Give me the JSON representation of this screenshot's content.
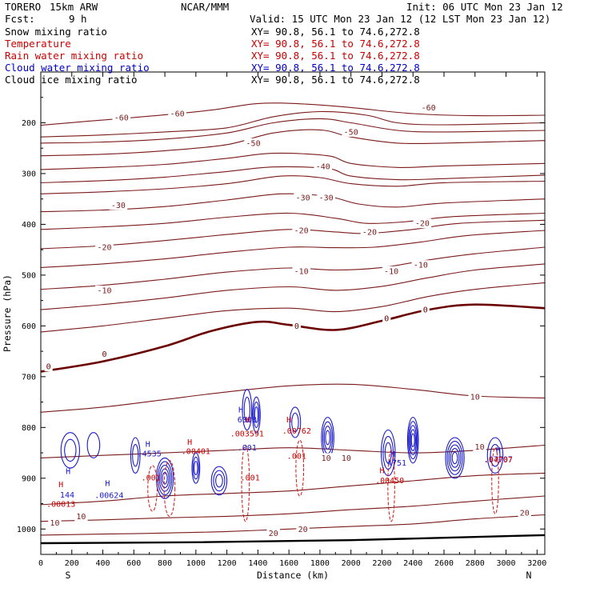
{
  "header": {
    "model": "TORERO",
    "resolution": "15km ARW",
    "org": "NCAR/MMM",
    "init": "Init: 06 UTC Mon 23 Jan 12",
    "fcst_label": "Fcst:",
    "fcst_value": "9 h",
    "valid": "Valid: 15 UTC Mon 23 Jan 12 (12 LST Mon 23 Jan 12)"
  },
  "fields": [
    {
      "name": "Snow mixing ratio",
      "xy": "XY=  90.8, 56.1 to  74.6,272.8",
      "color": "#000000",
      "xy_color": "#000000"
    },
    {
      "name": "Temperature",
      "xy": "XY=  90.8, 56.1 to  74.6,272.8",
      "color": "#cc0000",
      "xy_color": "#cc0000"
    },
    {
      "name": "Rain water mixing ratio",
      "xy": "XY=  90.8, 56.1 to  74.6,272.8",
      "color": "#cc0000",
      "xy_color": "#cc0000"
    },
    {
      "name": "Cloud water mixing ratio",
      "xy": "XY=  90.8, 56.1 to  74.6,272.8",
      "color": "#0000cc",
      "xy_color": "#0000cc"
    },
    {
      "name": "Cloud ice mixing ratio",
      "xy": "XY=  90.8, 56.1 to  74.6,272.8",
      "color": "#000000",
      "xy_color": "#000000"
    }
  ],
  "colors": {
    "temperature": "#7a1a1a",
    "freezing": "#6b0000",
    "rain": "#dd1111",
    "cloud_water": "#1a1acc",
    "ground": "#000000"
  },
  "chart_data": {
    "type": "line",
    "xlabel": "Distance (km)",
    "ylabel": "Pressure (hPa)",
    "xlim": [
      0,
      3250
    ],
    "ylim": [
      1050,
      100
    ],
    "x_ticks": [
      0,
      200,
      400,
      600,
      800,
      1000,
      1200,
      1400,
      1600,
      1800,
      2000,
      2200,
      2400,
      2600,
      2800,
      3000,
      3200
    ],
    "y_ticks": [
      200,
      300,
      400,
      500,
      600,
      700,
      800,
      900,
      1000
    ],
    "endpoints": {
      "left": "S",
      "right": "N"
    },
    "ground_pressure": [
      [
        0,
        1028
      ],
      [
        1000,
        1026
      ],
      [
        2000,
        1022
      ],
      [
        3250,
        1012
      ]
    ],
    "isotherms": [
      {
        "x": [
          0,
          300,
          700,
          1100,
          1400,
          1700,
          2000,
          2400,
          2800,
          3250
        ],
        "p": [
          205,
          197,
          187,
          175,
          162,
          163,
          170,
          182,
          186,
          185
        ]
      },
      {
        "x": [
          0,
          400,
          800,
          1200,
          1500,
          1800,
          2100,
          2300,
          2600,
          3250
        ],
        "p": [
          228,
          224,
          218,
          210,
          188,
          178,
          185,
          200,
          204,
          200
        ]
      },
      {
        "x": [
          0,
          400,
          800,
          1200,
          1500,
          1800,
          2000,
          2300,
          2600,
          3250
        ],
        "p": [
          240,
          238,
          232,
          220,
          200,
          192,
          200,
          215,
          218,
          215
        ]
      },
      {
        "x": [
          0,
          400,
          800,
          1200,
          1500,
          1800,
          2000,
          2300,
          2600,
          3250
        ],
        "p": [
          265,
          262,
          255,
          243,
          220,
          214,
          228,
          240,
          240,
          235
        ]
      },
      {
        "x": [
          0,
          400,
          800,
          1200,
          1500,
          1850,
          2000,
          2300,
          2600,
          3250
        ],
        "p": [
          292,
          288,
          282,
          270,
          260,
          265,
          280,
          288,
          285,
          280
        ]
      },
      {
        "x": [
          0,
          400,
          800,
          1200,
          1500,
          1850,
          2000,
          2300,
          2600,
          3250
        ],
        "p": [
          318,
          314,
          307,
          296,
          287,
          290,
          305,
          312,
          310,
          303
        ]
      },
      {
        "x": [
          0,
          400,
          800,
          1200,
          1550,
          1800,
          2000,
          2300,
          2600,
          3250
        ],
        "p": [
          340,
          336,
          330,
          320,
          305,
          308,
          320,
          325,
          318,
          315
        ]
      },
      {
        "x": [
          0,
          400,
          800,
          1200,
          1550,
          1850,
          2050,
          2300,
          2600,
          3250
        ],
        "p": [
          375,
          372,
          365,
          352,
          340,
          345,
          360,
          366,
          358,
          350
        ]
      },
      {
        "x": [
          0,
          400,
          800,
          1200,
          1600,
          1900,
          2100,
          2350,
          2650,
          3250
        ],
        "p": [
          410,
          405,
          398,
          386,
          378,
          388,
          398,
          395,
          385,
          378
        ]
      },
      {
        "x": [
          0,
          400,
          800,
          1200,
          1600,
          1900,
          2100,
          2400,
          2700,
          3250
        ],
        "p": [
          448,
          442,
          432,
          420,
          410,
          415,
          418,
          410,
          398,
          392
        ]
      },
      {
        "x": [
          0,
          400,
          800,
          1200,
          1600,
          1900,
          2150,
          2450,
          2750,
          3250
        ],
        "p": [
          485,
          478,
          468,
          455,
          445,
          446,
          445,
          435,
          422,
          412
        ]
      },
      {
        "x": [
          0,
          400,
          800,
          1200,
          1600,
          1900,
          2200,
          2500,
          2800,
          3250
        ],
        "p": [
          528,
          520,
          508,
          494,
          486,
          490,
          485,
          470,
          458,
          445
        ]
      },
      {
        "x": [
          0,
          400,
          800,
          1200,
          1600,
          1900,
          2200,
          2500,
          2800,
          3250
        ],
        "p": [
          568,
          558,
          545,
          530,
          523,
          530,
          522,
          505,
          490,
          478
        ]
      },
      {
        "x": [
          0,
          400,
          800,
          1200,
          1600,
          1900,
          2200,
          2500,
          2800,
          3250
        ],
        "p": [
          612,
          600,
          585,
          570,
          565,
          572,
          562,
          542,
          528,
          515
        ]
      },
      {
        "x": [
          0,
          400,
          800,
          1100,
          1400,
          1600,
          1900,
          2200,
          2500,
          2800,
          3250
        ],
        "p": [
          690,
          670,
          640,
          610,
          592,
          598,
          608,
          590,
          568,
          558,
          565
        ]
      },
      {
        "x": [
          0,
          400,
          800,
          1200,
          1600,
          2000,
          2400,
          2800,
          3250
        ],
        "p": [
          770,
          760,
          745,
          730,
          718,
          715,
          725,
          738,
          742
        ]
      },
      {
        "x": [
          0,
          400,
          800,
          1200,
          1600,
          2000,
          2400,
          2800,
          3250
        ],
        "p": [
          860,
          855,
          850,
          845,
          840,
          845,
          850,
          845,
          835
        ]
      },
      {
        "x": [
          0,
          400,
          800,
          1200,
          1600,
          2000,
          2400,
          2800,
          3250
        ],
        "p": [
          952,
          945,
          935,
          930,
          925,
          915,
          905,
          895,
          890
        ]
      },
      {
        "x": [
          0,
          400,
          800,
          1200,
          1600,
          2000,
          2400,
          2800,
          3250
        ],
        "p": [
          985,
          982,
          978,
          975,
          970,
          962,
          955,
          945,
          935
        ]
      },
      {
        "x": [
          0,
          400,
          800,
          1200,
          1600,
          2000,
          2400,
          2800,
          3250
        ],
        "p": [
          1012,
          1010,
          1008,
          1005,
          1000,
          995,
          990,
          980,
          972
        ]
      }
    ],
    "freezing_level": {
      "x": [
        0,
        400,
        800,
        1100,
        1400,
        1600,
        1900,
        2200,
        2500,
        2800,
        3250
      ],
      "p": [
        690,
        670,
        640,
        610,
        592,
        598,
        608,
        590,
        568,
        558,
        565
      ]
    },
    "contour_labels": [
      {
        "text": "-60",
        "x": 2500,
        "p": 170,
        "color": "#7a1a1a"
      },
      {
        "text": "-60",
        "x": 520,
        "p": 190,
        "color": "#7a1a1a"
      },
      {
        "text": "-60",
        "x": 880,
        "p": 182,
        "color": "#7a1a1a"
      },
      {
        "text": "-50",
        "x": 1370,
        "p": 240,
        "color": "#7a1a1a"
      },
      {
        "text": "-50",
        "x": 2000,
        "p": 218,
        "color": "#7a1a1a"
      },
      {
        "text": "-40",
        "x": 1820,
        "p": 286,
        "color": "#7a1a1a"
      },
      {
        "text": "-30",
        "x": 1690,
        "p": 347,
        "color": "#7a1a1a"
      },
      {
        "text": "-30",
        "x": 1840,
        "p": 347,
        "color": "#7a1a1a"
      },
      {
        "text": "-30",
        "x": 500,
        "p": 362,
        "color": "#7a1a1a"
      },
      {
        "text": "-20",
        "x": 1680,
        "p": 412,
        "color": "#7a1a1a"
      },
      {
        "text": "-20",
        "x": 2120,
        "p": 415,
        "color": "#7a1a1a"
      },
      {
        "text": "-20",
        "x": 2460,
        "p": 398,
        "color": "#7a1a1a"
      },
      {
        "text": "-20",
        "x": 410,
        "p": 445,
        "color": "#7a1a1a"
      },
      {
        "text": "-10",
        "x": 1680,
        "p": 492,
        "color": "#7a1a1a"
      },
      {
        "text": "-10",
        "x": 2260,
        "p": 492,
        "color": "#7a1a1a"
      },
      {
        "text": "-10",
        "x": 2450,
        "p": 480,
        "color": "#7a1a1a"
      },
      {
        "text": "-10",
        "x": 410,
        "p": 530,
        "color": "#7a1a1a"
      },
      {
        "text": "0",
        "x": 1650,
        "p": 600,
        "color": "#6b0000"
      },
      {
        "text": "0",
        "x": 2230,
        "p": 585,
        "color": "#6b0000"
      },
      {
        "text": "0",
        "x": 2480,
        "p": 568,
        "color": "#6b0000"
      },
      {
        "text": "0",
        "x": 410,
        "p": 655,
        "color": "#6b0000"
      },
      {
        "text": "0",
        "x": 50,
        "p": 680,
        "color": "#6b0000"
      },
      {
        "text": "10",
        "x": 2800,
        "p": 740,
        "color": "#7a1a1a"
      },
      {
        "text": "10",
        "x": 1840,
        "p": 860,
        "color": "#7a1a1a"
      },
      {
        "text": "10",
        "x": 1970,
        "p": 860,
        "color": "#7a1a1a"
      },
      {
        "text": "10",
        "x": 2830,
        "p": 838,
        "color": "#7a1a1a"
      },
      {
        "text": "10",
        "x": 90,
        "p": 988,
        "color": "#7a1a1a"
      },
      {
        "text": "10",
        "x": 260,
        "p": 975,
        "color": "#7a1a1a"
      },
      {
        "text": "20",
        "x": 3120,
        "p": 968,
        "color": "#7a1a1a"
      },
      {
        "text": "20",
        "x": 1690,
        "p": 1000,
        "color": "#7a1a1a"
      },
      {
        "text": "20",
        "x": 1500,
        "p": 1008,
        "color": "#7a1a1a"
      }
    ],
    "cloud_water_cells": [
      {
        "x": 190,
        "p": 845,
        "rx": 60,
        "rp": 35,
        "n": 2
      },
      {
        "x": 340,
        "p": 835,
        "rx": 40,
        "rp": 25,
        "n": 1
      },
      {
        "x": 610,
        "p": 855,
        "rx": 30,
        "rp": 35,
        "n": 2
      },
      {
        "x": 800,
        "p": 900,
        "rx": 55,
        "rp": 40,
        "n": 5
      },
      {
        "x": 1000,
        "p": 880,
        "rx": 25,
        "rp": 30,
        "n": 3
      },
      {
        "x": 1150,
        "p": 905,
        "rx": 50,
        "rp": 28,
        "n": 3
      },
      {
        "x": 1330,
        "p": 765,
        "rx": 30,
        "rp": 40,
        "n": 2
      },
      {
        "x": 1390,
        "p": 775,
        "rx": 25,
        "rp": 35,
        "n": 3
      },
      {
        "x": 1640,
        "p": 790,
        "rx": 35,
        "rp": 30,
        "n": 2
      },
      {
        "x": 1850,
        "p": 820,
        "rx": 40,
        "rp": 40,
        "n": 4
      },
      {
        "x": 2240,
        "p": 850,
        "rx": 45,
        "rp": 45,
        "n": 3
      },
      {
        "x": 2400,
        "p": 825,
        "rx": 35,
        "rp": 45,
        "n": 5
      },
      {
        "x": 2670,
        "p": 860,
        "rx": 60,
        "rp": 40,
        "n": 5
      },
      {
        "x": 2930,
        "p": 855,
        "rx": 50,
        "rp": 35,
        "n": 2
      }
    ],
    "rain_cells": [
      {
        "x": 720,
        "p": 920,
        "rx": 30,
        "rp": 45
      },
      {
        "x": 830,
        "p": 920,
        "rx": 35,
        "rp": 55
      },
      {
        "x": 1320,
        "p": 910,
        "rx": 25,
        "rp": 75
      },
      {
        "x": 1670,
        "p": 880,
        "rx": 25,
        "rp": 55
      },
      {
        "x": 2260,
        "p": 915,
        "rx": 22,
        "rp": 70
      },
      {
        "x": 2930,
        "p": 905,
        "rx": 22,
        "rp": 65
      }
    ],
    "annotations": [
      {
        "text": "H",
        "x": 130,
        "p": 918,
        "color": "#cc0000"
      },
      {
        "text": ".00013",
        "x": 130,
        "p": 956,
        "color": "#cc0000"
      },
      {
        "text": "H",
        "x": 130,
        "p": 920,
        "color": "#1a1acc",
        "dx": 9,
        "dp": -18
      },
      {
        "text": "144",
        "x": 170,
        "p": 938,
        "color": "#1a1acc"
      },
      {
        "text": "H",
        "x": 430,
        "p": 915,
        "color": "#1a1acc"
      },
      {
        "text": ".00624",
        "x": 440,
        "p": 939,
        "color": "#1a1acc"
      },
      {
        "text": "H",
        "x": 690,
        "p": 838,
        "color": "#1a1acc"
      },
      {
        "text": ".4535",
        "x": 700,
        "p": 857,
        "color": "#1a1acc"
      },
      {
        "text": ".001",
        "x": 710,
        "p": 904,
        "color": "#cc0000"
      },
      {
        "text": "H",
        "x": 960,
        "p": 834,
        "color": "#cc0000"
      },
      {
        "text": ".00401",
        "x": 1000,
        "p": 852,
        "color": "#cc0000"
      },
      {
        "text": "H",
        "x": 1290,
        "p": 770,
        "color": "#1a1acc"
      },
      {
        "text": "6008",
        "x": 1330,
        "p": 790,
        "color": "#1a1acc"
      },
      {
        "text": "H",
        "x": 1290,
        "p": 790,
        "color": "#cc0000",
        "dx": 9
      },
      {
        "text": ".003591",
        "x": 1330,
        "p": 818,
        "color": "#cc0000"
      },
      {
        "text": ".001",
        "x": 1330,
        "p": 845,
        "color": "#1a1acc"
      },
      {
        "text": ".001",
        "x": 1350,
        "p": 904,
        "color": "#cc0000"
      },
      {
        "text": "H",
        "x": 1600,
        "p": 790,
        "color": "#cc0000"
      },
      {
        "text": ".00762",
        "x": 1650,
        "p": 812,
        "color": "#cc0000"
      },
      {
        "text": ".001",
        "x": 1650,
        "p": 862,
        "color": "#cc0000"
      },
      {
        "text": "H",
        "x": 2270,
        "p": 858,
        "color": "#1a1acc"
      },
      {
        "text": ".4751",
        "x": 2280,
        "p": 875,
        "color": "#1a1acc"
      },
      {
        "text": "H",
        "x": 2200,
        "p": 890,
        "color": "#cc0000"
      },
      {
        "text": ".00450",
        "x": 2250,
        "p": 910,
        "color": "#cc0000"
      },
      {
        "text": "H",
        "x": 2950,
        "p": 850,
        "color": "#1a1acc"
      },
      {
        "text": ".07707",
        "x": 2950,
        "p": 868,
        "color": "#1a1acc"
      },
      {
        "text": ".04707",
        "x": 2950,
        "p": 869,
        "color": "#cc0000"
      }
    ]
  }
}
